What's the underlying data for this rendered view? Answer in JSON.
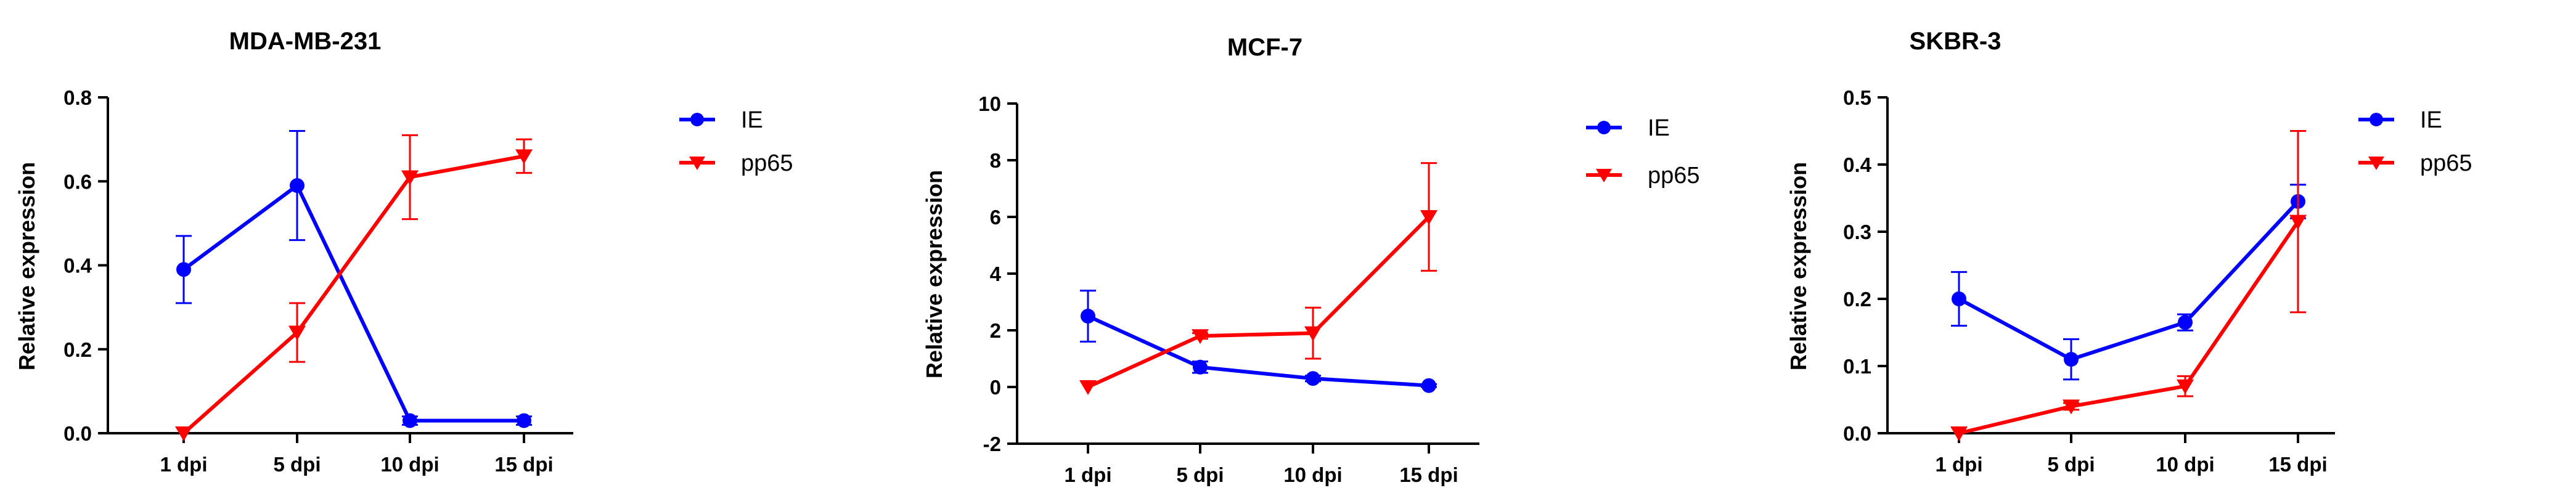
{
  "chart_data": [
    {
      "type": "line",
      "title": "MDA-MB-231",
      "xlabel": "",
      "ylabel": "Relative expression",
      "categories": [
        "1 dpi",
        "5 dpi",
        "10 dpi",
        "15 dpi"
      ],
      "ylim": [
        0,
        0.8
      ],
      "yticks": [
        0.0,
        0.2,
        0.4,
        0.6,
        0.8
      ],
      "ytick_labels": [
        "0.0",
        "0.2",
        "0.4",
        "0.6",
        "0.8"
      ],
      "grid": false,
      "legend": "right",
      "series": [
        {
          "name": "IE",
          "color": "#0000ff",
          "marker": "circle",
          "values": [
            0.39,
            0.59,
            0.03,
            0.03
          ],
          "errors": [
            0.08,
            0.13,
            0.01,
            0.01
          ]
        },
        {
          "name": "pp65",
          "color": "#ff0000",
          "marker": "triangle-down",
          "values": [
            0.0,
            0.24,
            0.61,
            0.66
          ],
          "errors": [
            0.0,
            0.07,
            0.1,
            0.04
          ]
        }
      ]
    },
    {
      "type": "line",
      "title": "MCF-7",
      "xlabel": "",
      "ylabel": "Relative expression",
      "categories": [
        "1 dpi",
        "5 dpi",
        "10 dpi",
        "15 dpi"
      ],
      "ylim": [
        -2,
        10
      ],
      "yticks": [
        -2,
        0,
        2,
        4,
        6,
        8,
        10
      ],
      "ytick_labels": [
        "-2",
        "0",
        "2",
        "4",
        "6",
        "8",
        "10"
      ],
      "grid": false,
      "legend": "right",
      "series": [
        {
          "name": "IE",
          "color": "#0000ff",
          "marker": "circle",
          "values": [
            2.5,
            0.7,
            0.3,
            0.05
          ],
          "errors": [
            0.9,
            0.2,
            0.1,
            0.05
          ]
        },
        {
          "name": "pp65",
          "color": "#ff0000",
          "marker": "triangle-down",
          "values": [
            0.0,
            1.8,
            1.9,
            6.0
          ],
          "errors": [
            0.0,
            0.1,
            0.9,
            1.9
          ]
        }
      ]
    },
    {
      "type": "line",
      "title": "SKBR-3",
      "xlabel": "",
      "ylabel": "Relative expression",
      "categories": [
        "1 dpi",
        "5 dpi",
        "10 dpi",
        "15 dpi"
      ],
      "ylim": [
        0,
        0.5
      ],
      "yticks": [
        0.0,
        0.1,
        0.2,
        0.3,
        0.4,
        0.5
      ],
      "ytick_labels": [
        "0.0",
        "0.1",
        "0.2",
        "0.3",
        "0.4",
        "0.5"
      ],
      "grid": false,
      "legend": "right",
      "series": [
        {
          "name": "IE",
          "color": "#0000ff",
          "marker": "circle",
          "values": [
            0.2,
            0.11,
            0.165,
            0.345
          ],
          "errors": [
            0.04,
            0.03,
            0.012,
            0.025
          ]
        },
        {
          "name": "pp65",
          "color": "#ff0000",
          "marker": "triangle-down",
          "values": [
            0.0,
            0.04,
            0.07,
            0.315
          ],
          "errors": [
            0.0,
            0.005,
            0.015,
            0.135
          ]
        }
      ]
    }
  ]
}
